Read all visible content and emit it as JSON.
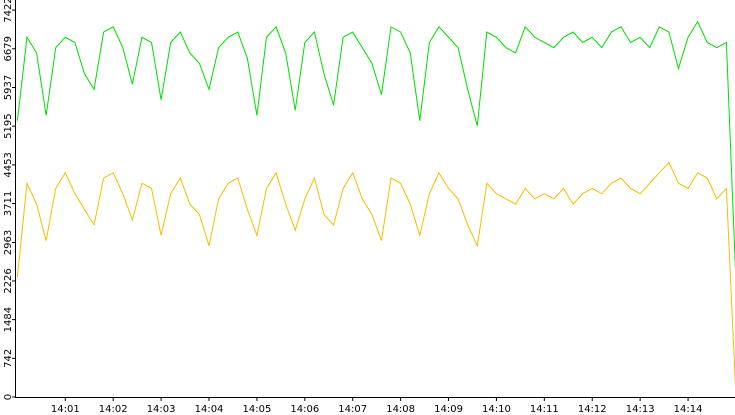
{
  "chart_data": {
    "type": "line",
    "x": [
      840,
      840.2,
      840.4,
      840.6,
      840.8,
      841,
      841.2,
      841.4,
      841.6,
      841.8,
      842,
      842.2,
      842.4,
      842.6,
      842.8,
      843,
      843.2,
      843.4,
      843.6,
      843.8,
      844,
      844.2,
      844.4,
      844.6,
      844.8,
      845,
      845.2,
      845.4,
      845.6,
      845.8,
      846,
      846.2,
      846.4,
      846.6,
      846.8,
      847,
      847.2,
      847.4,
      847.6,
      847.8,
      848,
      848.2,
      848.4,
      848.6,
      848.8,
      849,
      849.2,
      849.4,
      849.6,
      849.8,
      850,
      850.2,
      850.4,
      850.6,
      850.8,
      851,
      851.2,
      851.4,
      851.6,
      851.8,
      852,
      852.2,
      852.4,
      852.6,
      852.8,
      853,
      853.2,
      853.4,
      853.6,
      853.8,
      854,
      854.2,
      854.4,
      854.6,
      854.8,
      855
    ],
    "series": [
      {
        "color": "#00dd00",
        "values": [
          5300,
          6900,
          6600,
          5400,
          6700,
          6900,
          6800,
          6200,
          5900,
          7000,
          7100,
          6700,
          6000,
          6900,
          6800,
          5700,
          6800,
          7000,
          6600,
          6400,
          5900,
          6700,
          6900,
          7000,
          6500,
          5400,
          6900,
          7100,
          6600,
          5500,
          6800,
          7000,
          6200,
          5600,
          6900,
          7000,
          6700,
          6400,
          5800,
          7100,
          7000,
          6600,
          5300,
          6800,
          7100,
          6900,
          6700,
          5900,
          5200,
          7000,
          6900,
          6700,
          6600,
          7100,
          6900,
          6800,
          6700,
          6900,
          7000,
          6800,
          6900,
          6700,
          7000,
          7100,
          6800,
          6900,
          6700,
          7100,
          7000,
          6300,
          6900,
          7200,
          6800,
          6700,
          6800,
          2200
        ]
      },
      {
        "color": "#f0c000",
        "values": [
          2300,
          4100,
          3700,
          3000,
          4000,
          4300,
          3900,
          3600,
          3300,
          4200,
          4300,
          3900,
          3400,
          4100,
          4000,
          3100,
          3900,
          4200,
          3700,
          3500,
          2900,
          3800,
          4100,
          4200,
          3600,
          3100,
          4000,
          4300,
          3700,
          3200,
          3800,
          4200,
          3500,
          3300,
          4000,
          4300,
          3800,
          3500,
          3000,
          4200,
          4100,
          3700,
          3100,
          3900,
          4300,
          4000,
          3800,
          3300,
          2900,
          4100,
          3900,
          3800,
          3700,
          4000,
          3800,
          3900,
          3800,
          4000,
          3700,
          3900,
          4000,
          3900,
          4100,
          4200,
          4000,
          3900,
          4100,
          4300,
          4500,
          4100,
          4000,
          4300,
          4200,
          3800,
          4000,
          0
        ]
      }
    ],
    "xlim": [
      839.95,
      854.98
    ],
    "xticks": [
      {
        "value": 841,
        "label": "14:01"
      },
      {
        "value": 842,
        "label": "14:02"
      },
      {
        "value": 843,
        "label": "14:03"
      },
      {
        "value": 844,
        "label": "14:04"
      },
      {
        "value": 845,
        "label": "14:05"
      },
      {
        "value": 846,
        "label": "14:06"
      },
      {
        "value": 847,
        "label": "14:07"
      },
      {
        "value": 848,
        "label": "14:08"
      },
      {
        "value": 849,
        "label": "14:09"
      },
      {
        "value": 850,
        "label": "14:10"
      },
      {
        "value": 851,
        "label": "14:11"
      },
      {
        "value": 852,
        "label": "14:12"
      },
      {
        "value": 853,
        "label": "14:13"
      },
      {
        "value": 854,
        "label": "14:14"
      }
    ],
    "ylim": [
      0,
      7615
    ],
    "yticks": [
      0,
      742,
      1484,
      2226,
      2963,
      3711,
      4453,
      5195,
      5937,
      6679,
      7422
    ]
  }
}
